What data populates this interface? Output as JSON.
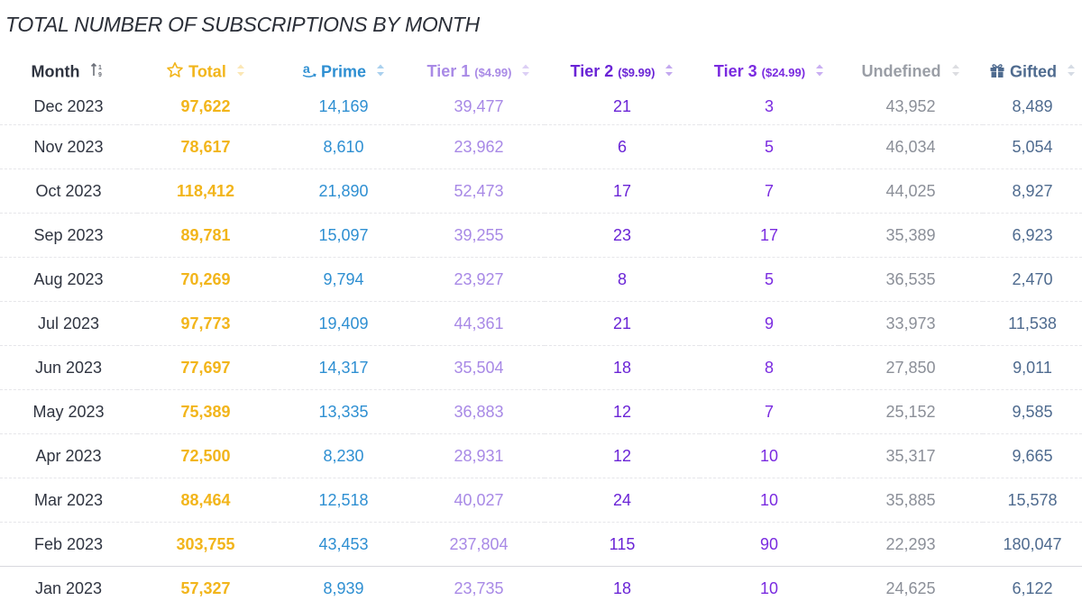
{
  "title": "TOTAL NUMBER OF SUBSCRIPTIONS BY MONTH",
  "headers": {
    "month": "Month",
    "total": "Total",
    "prime": "Prime",
    "tier1": "Tier 1",
    "tier1_price": "($4.99)",
    "tier2": "Tier 2",
    "tier2_price": "($9.99)",
    "tier3": "Tier 3",
    "tier3_price": "($24.99)",
    "undefined": "Undefined",
    "gifted": "Gifted"
  },
  "icons": {
    "month_sort": "sort-numeric-icon",
    "total": "star-icon",
    "prime": "amazon-icon",
    "gifted": "gift-icon",
    "column_sort": "sort-icon"
  },
  "colors": {
    "total": "#f2b51b",
    "prime": "#2e8fd2",
    "tier1": "#a889e6",
    "tier2": "#6a24d6",
    "tier3": "#7a2be0",
    "undefined": "#8b8f98",
    "gifted": "#4f6b8f"
  },
  "rows": [
    {
      "month": "Dec 2023",
      "total": "97,622",
      "prime": "14,169",
      "tier1": "39,477",
      "tier2": "21",
      "tier3": "3",
      "undefined": "43,952",
      "gifted": "8,489"
    },
    {
      "month": "Nov 2023",
      "total": "78,617",
      "prime": "8,610",
      "tier1": "23,962",
      "tier2": "6",
      "tier3": "5",
      "undefined": "46,034",
      "gifted": "5,054"
    },
    {
      "month": "Oct 2023",
      "total": "118,412",
      "prime": "21,890",
      "tier1": "52,473",
      "tier2": "17",
      "tier3": "7",
      "undefined": "44,025",
      "gifted": "8,927"
    },
    {
      "month": "Sep 2023",
      "total": "89,781",
      "prime": "15,097",
      "tier1": "39,255",
      "tier2": "23",
      "tier3": "17",
      "undefined": "35,389",
      "gifted": "6,923"
    },
    {
      "month": "Aug 2023",
      "total": "70,269",
      "prime": "9,794",
      "tier1": "23,927",
      "tier2": "8",
      "tier3": "5",
      "undefined": "36,535",
      "gifted": "2,470"
    },
    {
      "month": "Jul 2023",
      "total": "97,773",
      "prime": "19,409",
      "tier1": "44,361",
      "tier2": "21",
      "tier3": "9",
      "undefined": "33,973",
      "gifted": "11,538"
    },
    {
      "month": "Jun 2023",
      "total": "77,697",
      "prime": "14,317",
      "tier1": "35,504",
      "tier2": "18",
      "tier3": "8",
      "undefined": "27,850",
      "gifted": "9,011"
    },
    {
      "month": "May 2023",
      "total": "75,389",
      "prime": "13,335",
      "tier1": "36,883",
      "tier2": "12",
      "tier3": "7",
      "undefined": "25,152",
      "gifted": "9,585"
    },
    {
      "month": "Apr 2023",
      "total": "72,500",
      "prime": "8,230",
      "tier1": "28,931",
      "tier2": "12",
      "tier3": "10",
      "undefined": "35,317",
      "gifted": "9,665"
    },
    {
      "month": "Mar 2023",
      "total": "88,464",
      "prime": "12,518",
      "tier1": "40,027",
      "tier2": "24",
      "tier3": "10",
      "undefined": "35,885",
      "gifted": "15,578"
    },
    {
      "month": "Feb 2023",
      "total": "303,755",
      "prime": "43,453",
      "tier1": "237,804",
      "tier2": "115",
      "tier3": "90",
      "undefined": "22,293",
      "gifted": "180,047"
    },
    {
      "month": "Jan 2023",
      "total": "57,327",
      "prime": "8,939",
      "tier1": "23,735",
      "tier2": "18",
      "tier3": "10",
      "undefined": "24,625",
      "gifted": "6,122"
    }
  ]
}
